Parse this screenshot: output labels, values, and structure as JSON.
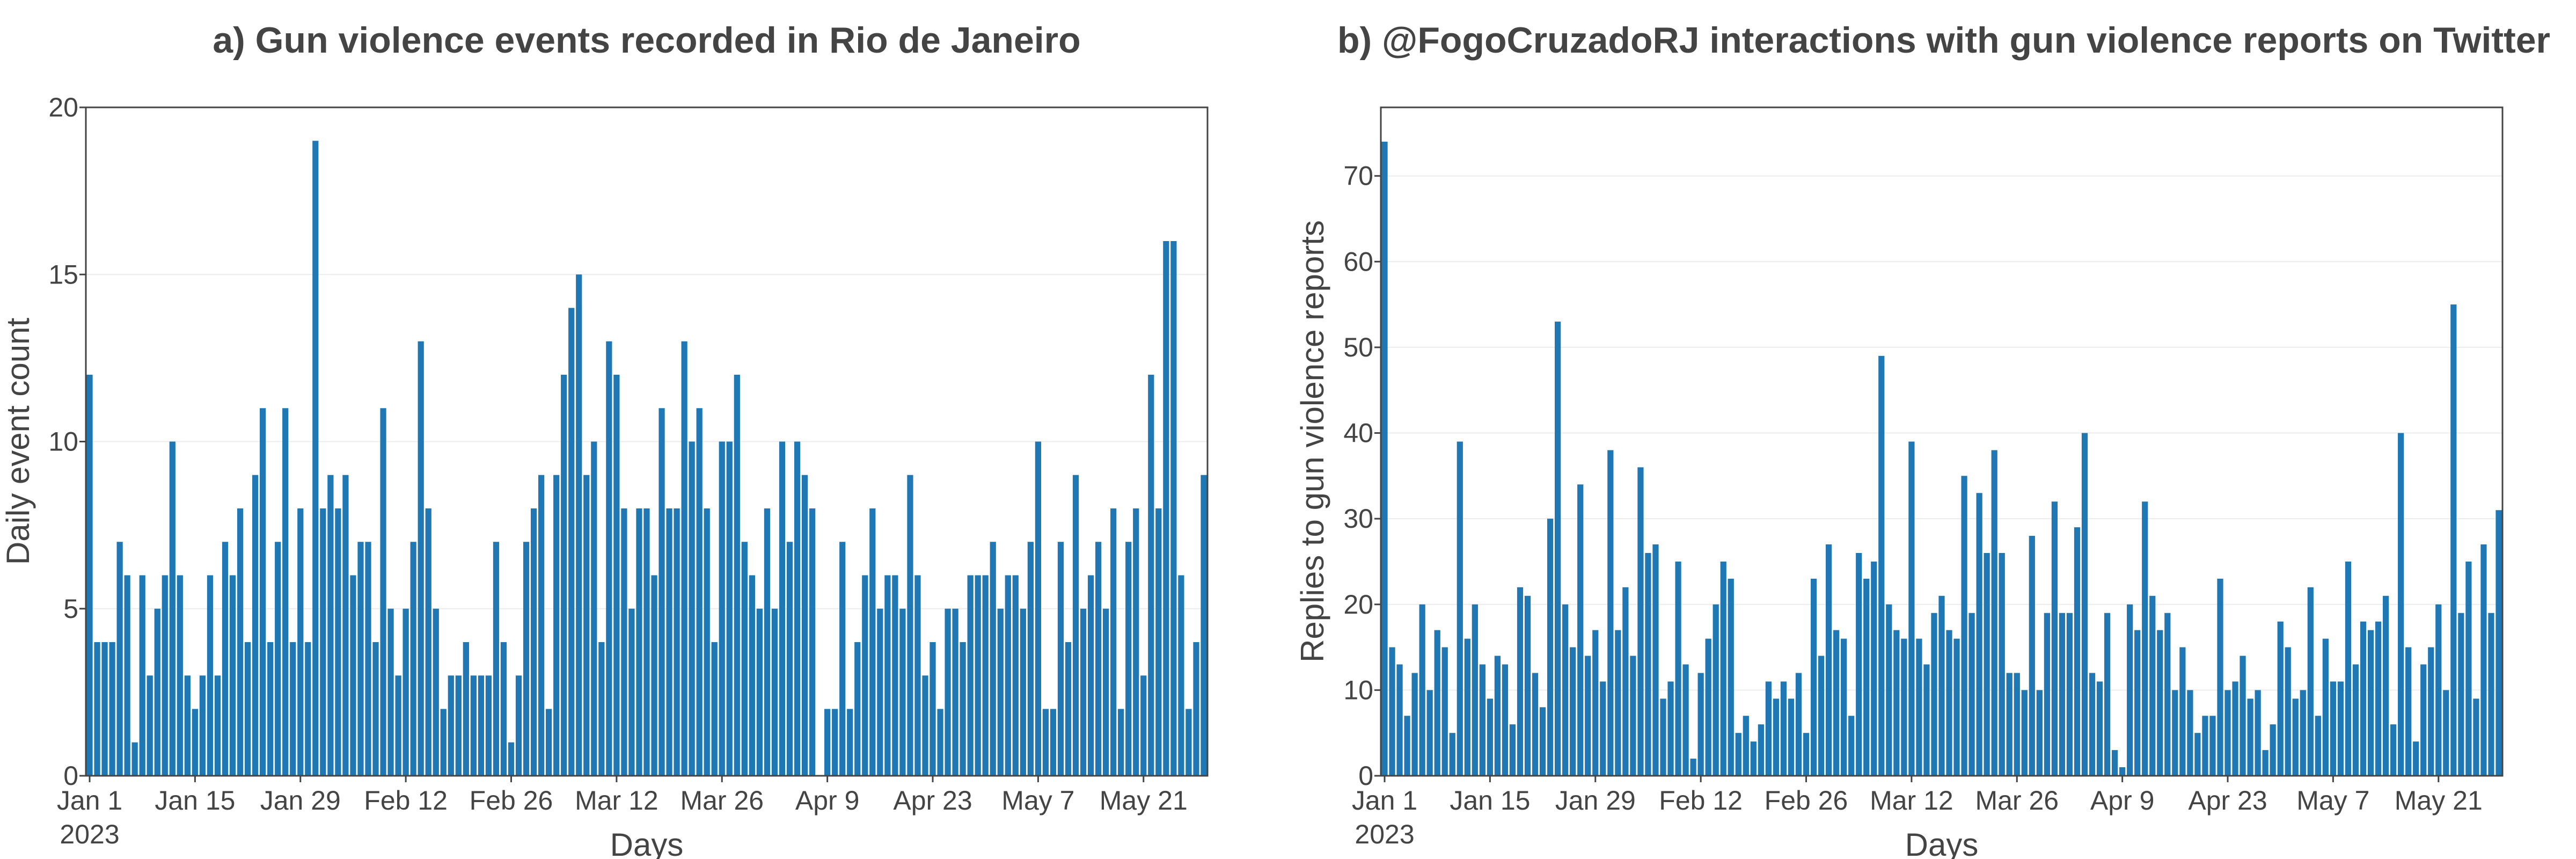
{
  "chart_data": [
    {
      "type": "bar",
      "title": "a) Gun violence events recorded in Rio de Janeiro",
      "xlabel": "Days",
      "ylabel": "Daily event count",
      "ylim": [
        0,
        20
      ],
      "yticks": [
        0,
        5,
        10,
        15,
        20
      ],
      "grid": true,
      "bar_color": "#1f77b4",
      "x_start": "2023-01-01",
      "x_end": "2023-05-31",
      "xticks": [
        {
          "date": "2023-01-01",
          "label": "Jan 1",
          "sublabel": "2023"
        },
        {
          "date": "2023-01-15",
          "label": "Jan 15"
        },
        {
          "date": "2023-01-29",
          "label": "Jan 29"
        },
        {
          "date": "2023-02-12",
          "label": "Feb 12"
        },
        {
          "date": "2023-02-26",
          "label": "Feb 26"
        },
        {
          "date": "2023-03-12",
          "label": "Mar 12"
        },
        {
          "date": "2023-03-26",
          "label": "Mar 26"
        },
        {
          "date": "2023-04-09",
          "label": "Apr 9"
        },
        {
          "date": "2023-04-23",
          "label": "Apr 23"
        },
        {
          "date": "2023-05-07",
          "label": "May 7"
        },
        {
          "date": "2023-05-21",
          "label": "May 21"
        }
      ],
      "values": [
        12,
        4,
        4,
        4,
        7,
        6,
        1,
        6,
        3,
        5,
        6,
        10,
        6,
        3,
        2,
        3,
        6,
        3,
        7,
        6,
        8,
        4,
        9,
        11,
        4,
        7,
        11,
        4,
        8,
        4,
        19,
        8,
        9,
        8,
        9,
        6,
        7,
        7,
        4,
        11,
        5,
        3,
        5,
        7,
        13,
        8,
        5,
        2,
        3,
        3,
        4,
        3,
        3,
        3,
        7,
        4,
        1,
        3,
        7,
        8,
        9,
        2,
        9,
        12,
        14,
        15,
        9,
        10,
        4,
        13,
        12,
        8,
        5,
        8,
        8,
        6,
        11,
        8,
        8,
        13,
        10,
        11,
        8,
        4,
        10,
        10,
        12,
        7,
        6,
        5,
        8,
        5,
        10,
        7,
        10,
        9,
        8,
        0,
        2,
        2,
        7,
        2,
        4,
        6,
        8,
        5,
        6,
        6,
        5,
        9,
        6,
        3,
        4,
        2,
        5,
        5,
        4,
        6,
        6,
        6,
        7,
        5,
        6,
        6,
        5,
        7,
        10,
        2,
        2,
        7,
        4,
        9,
        5,
        6,
        7,
        5,
        8,
        2,
        7,
        8,
        3,
        12,
        8,
        16,
        16,
        6,
        2,
        4,
        9
      ]
    },
    {
      "type": "bar",
      "title": "b) @FogoCruzadoRJ interactions with gun violence reports on Twitter",
      "xlabel": "Days",
      "ylabel": "Replies to gun violence reports",
      "ylim": [
        0,
        78
      ],
      "yticks": [
        0,
        10,
        20,
        30,
        40,
        50,
        60,
        70
      ],
      "grid": true,
      "bar_color": "#1f77b4",
      "x_start": "2023-01-01",
      "x_end": "2023-05-31",
      "xticks": [
        {
          "date": "2023-01-01",
          "label": "Jan 1",
          "sublabel": "2023"
        },
        {
          "date": "2023-01-15",
          "label": "Jan 15"
        },
        {
          "date": "2023-01-29",
          "label": "Jan 29"
        },
        {
          "date": "2023-02-12",
          "label": "Feb 12"
        },
        {
          "date": "2023-02-26",
          "label": "Feb 26"
        },
        {
          "date": "2023-03-12",
          "label": "Mar 12"
        },
        {
          "date": "2023-03-26",
          "label": "Mar 26"
        },
        {
          "date": "2023-04-09",
          "label": "Apr 9"
        },
        {
          "date": "2023-04-23",
          "label": "Apr 23"
        },
        {
          "date": "2023-05-07",
          "label": "May 7"
        },
        {
          "date": "2023-05-21",
          "label": "May 21"
        }
      ],
      "values": [
        74,
        15,
        13,
        7,
        12,
        20,
        10,
        17,
        15,
        5,
        39,
        16,
        20,
        13,
        9,
        14,
        13,
        6,
        22,
        21,
        12,
        8,
        30,
        53,
        20,
        15,
        34,
        14,
        17,
        11,
        38,
        17,
        22,
        14,
        36,
        26,
        27,
        9,
        11,
        25,
        13,
        2,
        12,
        16,
        20,
        25,
        23,
        5,
        7,
        4,
        6,
        11,
        9,
        11,
        9,
        12,
        5,
        23,
        14,
        27,
        17,
        16,
        7,
        26,
        23,
        25,
        49,
        20,
        17,
        16,
        39,
        16,
        13,
        19,
        21,
        17,
        16,
        35,
        19,
        33,
        26,
        38,
        26,
        12,
        12,
        10,
        28,
        10,
        19,
        32,
        19,
        19,
        29,
        40,
        12,
        11,
        19,
        3,
        1,
        20,
        17,
        32,
        21,
        17,
        19,
        10,
        15,
        10,
        5,
        7,
        7,
        23,
        10,
        11,
        14,
        9,
        10,
        3,
        6,
        18,
        15,
        9,
        10,
        22,
        7,
        16,
        11,
        11,
        25,
        13,
        18,
        17,
        18,
        21,
        6,
        40,
        15,
        4,
        13,
        15,
        20,
        10,
        55,
        19,
        25,
        9,
        27,
        19,
        31
      ]
    }
  ]
}
